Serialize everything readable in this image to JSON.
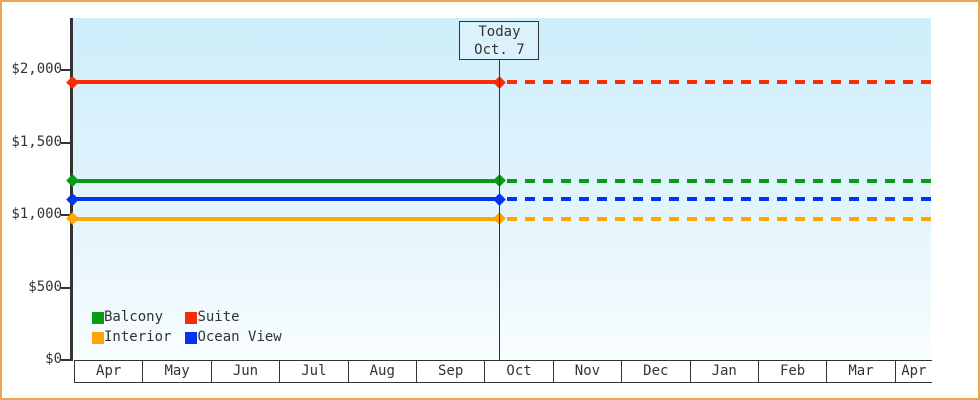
{
  "window": {
    "background": "#ffffff",
    "frame_border_color": "#eda751"
  },
  "chart_data": {
    "type": "line",
    "title": "",
    "x_categories": [
      "Apr",
      "May",
      "Jun",
      "Jul",
      "Aug",
      "Sep",
      "Oct",
      "Nov",
      "Dec",
      "Jan",
      "Feb",
      "Mar",
      "Apr"
    ],
    "y_axis": {
      "ylim": [
        0,
        2000
      ],
      "ticks": [
        {
          "value": 2000,
          "label": "$2,000"
        },
        {
          "value": 1500,
          "label": "$1,500"
        },
        {
          "value": 1000,
          "label": "$1,000"
        },
        {
          "value": 500,
          "label": "$500"
        },
        {
          "value": 0,
          "label": "$0"
        }
      ]
    },
    "series": [
      {
        "name": "Suite",
        "value": 1915,
        "color": "#fa2c06",
        "past_style": "solid",
        "future_style": "dashed"
      },
      {
        "name": "Balcony",
        "value": 1235,
        "color": "#0a9b14",
        "past_style": "solid",
        "future_style": "dashed"
      },
      {
        "name": "Ocean View",
        "value": 1110,
        "color": "#0433ee",
        "past_style": "solid",
        "future_style": "dashed"
      },
      {
        "name": "Interior",
        "value": 975,
        "color": "#ffa602",
        "past_style": "solid",
        "future_style": "dashed"
      }
    ],
    "today_marker": {
      "line1": "Today",
      "line2": "Oct. 7",
      "month_index": 6,
      "day_fraction": 0.22
    },
    "legend": {
      "order": [
        "Balcony",
        "Suite",
        "Interior",
        "Ocean View"
      ],
      "position": "bottom-left inside plot"
    },
    "grid": "off",
    "plot_background_top": "#cdeefb",
    "plot_background_bottom": "#f8fdff"
  },
  "colors": {
    "axis": "#333333",
    "text": "#333333",
    "today_box_fill": "#dbf1fc"
  }
}
